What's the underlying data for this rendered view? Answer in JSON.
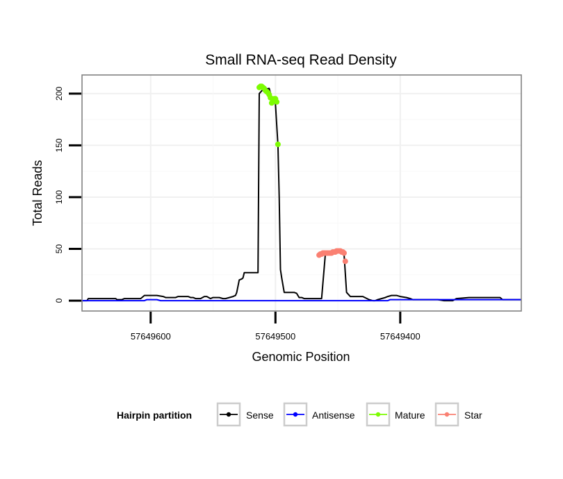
{
  "chart_data": {
    "type": "line",
    "title": "Small RNA-seq Read Density",
    "xlabel": "Genomic Position",
    "ylabel": "Total Reads",
    "xlim": [
      57649655,
      57649303
    ],
    "ylim": [
      -10,
      218
    ],
    "x_reversed": true,
    "x_ticks": [
      57649600,
      57649500,
      57649400
    ],
    "x_tick_labels": [
      "57649600",
      "57649500",
      "57649400"
    ],
    "y_ticks": [
      0,
      50,
      100,
      150,
      200
    ],
    "y_tick_labels": [
      "0",
      "50",
      "100",
      "150",
      "200"
    ],
    "grid": true,
    "legend": {
      "title": "Hairpin partition",
      "position": "bottom",
      "entries": [
        {
          "name": "Sense",
          "color": "#000000"
        },
        {
          "name": "Antisense",
          "color": "#0000ff"
        },
        {
          "name": "Mature",
          "color": "#7cfc00"
        },
        {
          "name": "Star",
          "color": "#fa8072"
        }
      ]
    },
    "series": [
      {
        "name": "Sense",
        "color": "#000000",
        "style": "line",
        "x": [
          57649656,
          57649651,
          57649650,
          57649640,
          57649628,
          57649627,
          57649623,
          57649621,
          57649616,
          57649613,
          57649608,
          57649605,
          57649595,
          57649590,
          57649588,
          57649580,
          57649578,
          57649570,
          57649568,
          57649566,
          57649564,
          57649560,
          57649557,
          57649555,
          57649552,
          57649550,
          57649547,
          57649545,
          57649542,
          57649540,
          57649534,
          57649532,
          57649531,
          57649529,
          57649527,
          57649526,
          57649525,
          57649520,
          57649516,
          57649515,
          57649514,
          57649513,
          57649510,
          57649505,
          57649503,
          57649500,
          57649498,
          57649497,
          57649496,
          57649495,
          57649493,
          57649485,
          57649483,
          57649481,
          57649479,
          57649477,
          57649470,
          57649467,
          57649466,
          57649465,
          57649463,
          57649460,
          57649458,
          57649456,
          57649453,
          57649452,
          57649451,
          57649448,
          57649446,
          57649445,
          57649443,
          57649440,
          57649435,
          57649430,
          57649425,
          57649422,
          57649420,
          57649418,
          57649415,
          57649412,
          57649410,
          57649407,
          57649403,
          57649400,
          57649395,
          57649392,
          57649390,
          57649385,
          57649380,
          57649372,
          57649370,
          57649365,
          57649358,
          57649355,
          57649345,
          57649320,
          57649318,
          57649303
        ],
        "y": [
          0,
          0,
          2,
          2,
          2,
          1,
          1,
          2,
          2,
          2,
          2,
          5,
          5,
          4,
          3,
          3,
          4,
          4,
          3,
          3,
          2,
          2,
          4,
          4,
          2,
          3,
          3,
          3,
          2,
          2,
          4,
          5,
          8,
          20,
          21,
          22,
          27,
          27,
          27,
          27,
          27,
          200,
          204,
          205,
          196,
          190,
          150,
          100,
          30,
          22,
          8,
          8,
          7,
          3,
          3,
          2,
          2,
          2,
          2,
          2,
          2,
          45,
          46,
          46,
          47,
          48,
          48,
          48,
          47,
          45,
          8,
          4,
          4,
          4,
          1,
          0,
          0,
          1,
          2,
          3,
          4,
          5,
          5,
          4,
          3,
          2,
          1,
          1,
          1,
          1,
          1,
          0,
          0,
          2,
          3,
          3,
          1,
          1
        ]
      },
      {
        "name": "Antisense",
        "color": "#0000ff",
        "style": "line",
        "x": [
          57649656,
          57649605,
          57649603,
          57649595,
          57649592,
          57649560,
          57649440,
          57649410,
          57649408,
          57649303
        ],
        "y": [
          0,
          0,
          1,
          1,
          0,
          0,
          0,
          0,
          1,
          1
        ]
      },
      {
        "name": "Mature",
        "color": "#7cfc00",
        "style": "points",
        "x": [
          57649513,
          57649512,
          57649511,
          57649510,
          57649509,
          57649508,
          57649507,
          57649506,
          57649505,
          57649504,
          57649503,
          57649502,
          57649501,
          57649500,
          57649499,
          57649498
        ],
        "y": [
          206,
          207,
          207,
          206,
          205,
          203,
          202,
          201,
          199,
          196,
          191,
          193,
          195,
          195,
          192,
          151
        ]
      },
      {
        "name": "Star",
        "color": "#fa8072",
        "style": "points",
        "x": [
          57649465,
          57649464,
          57649463,
          57649462,
          57649461,
          57649460,
          57649459,
          57649458,
          57649457,
          57649456,
          57649455,
          57649454,
          57649453,
          57649452,
          57649451,
          57649450,
          57649449,
          57649448,
          57649447,
          57649446,
          57649445,
          57649444
        ],
        "y": [
          44,
          45,
          45,
          46,
          46,
          46,
          46,
          46,
          46,
          46,
          46,
          47,
          47,
          47,
          48,
          48,
          48,
          48,
          47,
          47,
          46,
          38
        ]
      }
    ]
  }
}
